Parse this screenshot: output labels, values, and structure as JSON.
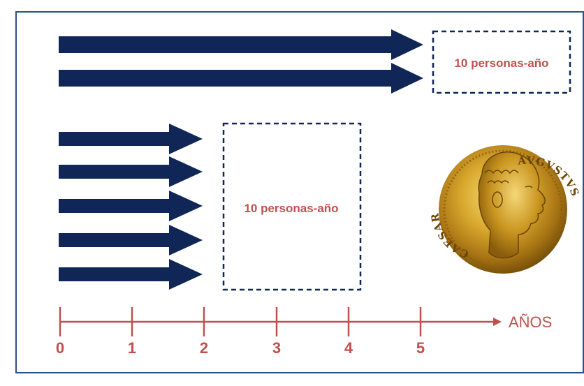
{
  "diagram": {
    "boxes": [
      {
        "label": "10 personas-año"
      },
      {
        "label": "10 personas-año"
      }
    ],
    "axis": {
      "label": "AÑOS",
      "ticks": [
        "0",
        "1",
        "2",
        "3",
        "4",
        "5"
      ]
    },
    "arrow_groups": [
      {
        "count": 2,
        "length_years": 5
      },
      {
        "count": 5,
        "length_years": 2
      }
    ],
    "coin": {
      "legend_left": "CAESAR",
      "legend_right": "AVGVSTVS"
    },
    "colors": {
      "arrow": "#0f2656",
      "box_border": "#0f2656",
      "text": "#c0504d",
      "axis": "#c0504d",
      "frame": "#2e4f86",
      "coin_gold": "#d4a531"
    }
  }
}
